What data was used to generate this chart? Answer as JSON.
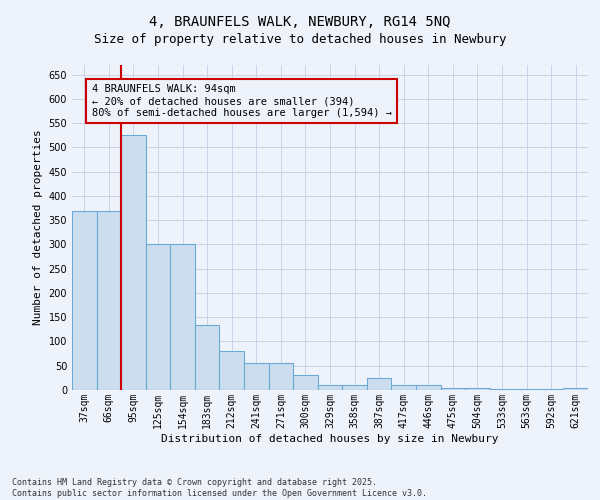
{
  "title_line1": "4, BRAUNFELS WALK, NEWBURY, RG14 5NQ",
  "title_line2": "Size of property relative to detached houses in Newbury",
  "xlabel": "Distribution of detached houses by size in Newbury",
  "ylabel": "Number of detached properties",
  "categories": [
    "37sqm",
    "66sqm",
    "95sqm",
    "125sqm",
    "154sqm",
    "183sqm",
    "212sqm",
    "241sqm",
    "271sqm",
    "300sqm",
    "329sqm",
    "358sqm",
    "387sqm",
    "417sqm",
    "446sqm",
    "475sqm",
    "504sqm",
    "533sqm",
    "563sqm",
    "592sqm",
    "621sqm"
  ],
  "values": [
    370,
    370,
    525,
    300,
    300,
    135,
    80,
    55,
    55,
    30,
    10,
    10,
    25,
    10,
    10,
    5,
    5,
    2,
    2,
    2,
    5
  ],
  "bar_color": "#ccddf0",
  "bar_edge_color": "#6aaad4",
  "vline_color": "#cc0000",
  "vline_x": 1.5,
  "annotation_text": "4 BRAUNFELS WALK: 94sqm\n← 20% of detached houses are smaller (394)\n80% of semi-detached houses are larger (1,594) →",
  "annotation_box_color": "#cc0000",
  "annotation_bg": "#eef2fa",
  "ylim": [
    0,
    670
  ],
  "grid_color": "#c8d4e8",
  "background_color": "#eef2fa",
  "footnote": "Contains HM Land Registry data © Crown copyright and database right 2025.\nContains public sector information licensed under the Open Government Licence v3.0.",
  "title_fontsize": 10,
  "subtitle_fontsize": 9,
  "axis_label_fontsize": 8,
  "tick_fontsize": 7,
  "annotation_fontsize": 7.5,
  "footnote_fontsize": 6
}
